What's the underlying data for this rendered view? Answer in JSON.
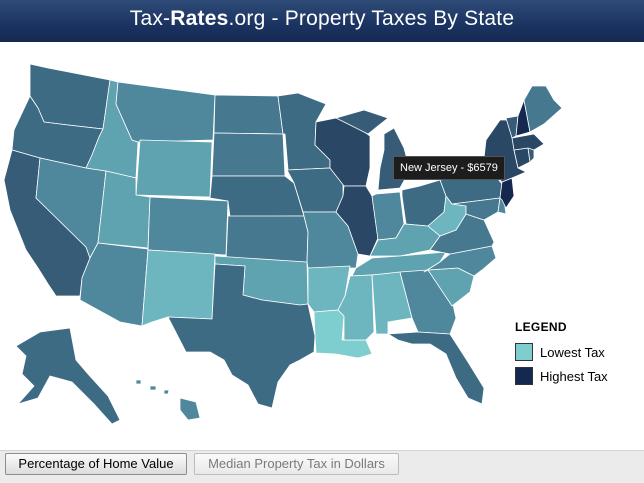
{
  "header": {
    "site_prefix": "Tax-",
    "site_bold": "Rates",
    "site_suffix": ".org - Property Taxes By State"
  },
  "tooltip": {
    "text": "New Jersey - $6579",
    "state": "New Jersey",
    "value": 6579
  },
  "legend": {
    "title": "LEGEND",
    "items": [
      {
        "label": "Lowest Tax",
        "color": "#7ecdcf"
      },
      {
        "label": "Highest Tax",
        "color": "#15284f"
      }
    ]
  },
  "buttons": {
    "percentage": "Percentage of Home Value",
    "median": "Median Property Tax in Dollars"
  },
  "colors": {
    "header_bg": "#1b3360",
    "state_shades": {
      "lowest": "#7ecdcf",
      "light": "#6eb6bf",
      "light_mid": "#5fa2b0",
      "mid": "#4f889c",
      "mid_dark": "#46788f",
      "dark_mid": "#3e6b84",
      "dark": "#365c78",
      "darker": "#2a4766",
      "highest": "#15284f"
    }
  },
  "map": {
    "states": [
      {
        "name": "Washington",
        "shade": "dark_mid"
      },
      {
        "name": "Oregon",
        "shade": "dark_mid"
      },
      {
        "name": "California",
        "shade": "dark"
      },
      {
        "name": "Idaho",
        "shade": "light_mid"
      },
      {
        "name": "Nevada",
        "shade": "mid"
      },
      {
        "name": "Utah",
        "shade": "light_mid"
      },
      {
        "name": "Arizona",
        "shade": "mid"
      },
      {
        "name": "Montana",
        "shade": "mid"
      },
      {
        "name": "Wyoming",
        "shade": "light_mid"
      },
      {
        "name": "Colorado",
        "shade": "mid"
      },
      {
        "name": "New Mexico",
        "shade": "light"
      },
      {
        "name": "North Dakota",
        "shade": "mid_dark"
      },
      {
        "name": "South Dakota",
        "shade": "mid_dark"
      },
      {
        "name": "Nebraska",
        "shade": "dark_mid"
      },
      {
        "name": "Kansas",
        "shade": "mid_dark"
      },
      {
        "name": "Oklahoma",
        "shade": "light_mid"
      },
      {
        "name": "Texas",
        "shade": "dark_mid"
      },
      {
        "name": "Minnesota",
        "shade": "dark_mid"
      },
      {
        "name": "Iowa",
        "shade": "dark_mid"
      },
      {
        "name": "Missouri",
        "shade": "mid"
      },
      {
        "name": "Arkansas",
        "shade": "light"
      },
      {
        "name": "Louisiana",
        "shade": "lowest"
      },
      {
        "name": "Wisconsin",
        "shade": "darker"
      },
      {
        "name": "Illinois",
        "shade": "darker"
      },
      {
        "name": "Michigan",
        "shade": "dark"
      },
      {
        "name": "Indiana",
        "shade": "mid"
      },
      {
        "name": "Ohio",
        "shade": "dark_mid"
      },
      {
        "name": "Kentucky",
        "shade": "light_mid"
      },
      {
        "name": "Tennessee",
        "shade": "light_mid"
      },
      {
        "name": "Mississippi",
        "shade": "light"
      },
      {
        "name": "Alabama",
        "shade": "light"
      },
      {
        "name": "Georgia",
        "shade": "mid"
      },
      {
        "name": "Florida",
        "shade": "dark_mid"
      },
      {
        "name": "South Carolina",
        "shade": "light_mid"
      },
      {
        "name": "North Carolina",
        "shade": "mid"
      },
      {
        "name": "Virginia",
        "shade": "mid_dark"
      },
      {
        "name": "West Virginia",
        "shade": "light"
      },
      {
        "name": "Pennsylvania",
        "shade": "dark_mid"
      },
      {
        "name": "New York",
        "shade": "darker"
      },
      {
        "name": "Vermont",
        "shade": "dark"
      },
      {
        "name": "New Hampshire",
        "shade": "highest"
      },
      {
        "name": "Maine",
        "shade": "mid_dark"
      },
      {
        "name": "Massachusetts",
        "shade": "darker"
      },
      {
        "name": "Rhode Island",
        "shade": "dark"
      },
      {
        "name": "Connecticut",
        "shade": "darker"
      },
      {
        "name": "New Jersey",
        "shade": "highest"
      },
      {
        "name": "Delaware",
        "shade": "mid"
      },
      {
        "name": "Maryland",
        "shade": "mid_dark"
      },
      {
        "name": "Alaska",
        "shade": "dark_mid"
      },
      {
        "name": "Hawaii",
        "shade": "mid"
      }
    ]
  }
}
